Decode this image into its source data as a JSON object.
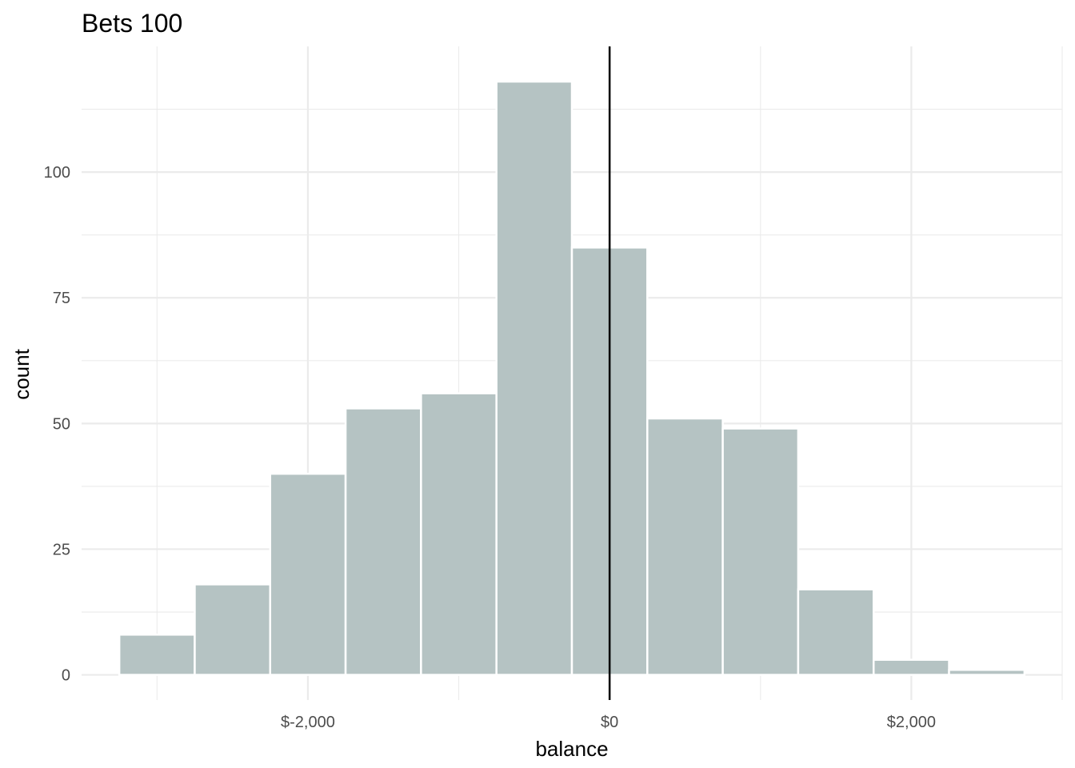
{
  "chart_data": {
    "type": "bar",
    "title": "Bets 100",
    "xlabel": "balance",
    "ylabel": "count",
    "bin_width": 500,
    "bins": [
      {
        "x_start": -3250,
        "x_end": -2750,
        "count": 8
      },
      {
        "x_start": -2750,
        "x_end": -2250,
        "count": 18
      },
      {
        "x_start": -2250,
        "x_end": -1750,
        "count": 40
      },
      {
        "x_start": -1750,
        "x_end": -1250,
        "count": 53
      },
      {
        "x_start": -1250,
        "x_end": -750,
        "count": 56
      },
      {
        "x_start": -750,
        "x_end": -250,
        "count": 118
      },
      {
        "x_start": -250,
        "x_end": 250,
        "count": 85
      },
      {
        "x_start": 250,
        "x_end": 750,
        "count": 51
      },
      {
        "x_start": 750,
        "x_end": 1250,
        "count": 49
      },
      {
        "x_start": 1250,
        "x_end": 1750,
        "count": 17
      },
      {
        "x_start": 1750,
        "x_end": 2250,
        "count": 3
      },
      {
        "x_start": 2250,
        "x_end": 2750,
        "count": 1
      }
    ],
    "reference_line": {
      "x": 0,
      "color": "#000000"
    },
    "x_ticks": [
      {
        "value": -2000,
        "label": "$-2,000"
      },
      {
        "value": 0,
        "label": "$0"
      },
      {
        "value": 2000,
        "label": "$2,000"
      }
    ],
    "y_ticks": [
      {
        "value": 0,
        "label": "0"
      },
      {
        "value": 25,
        "label": "25"
      },
      {
        "value": 50,
        "label": "50"
      },
      {
        "value": 75,
        "label": "75"
      },
      {
        "value": 100,
        "label": "100"
      }
    ],
    "xlim": [
      -3500,
      3000
    ],
    "ylim": [
      -5,
      125
    ],
    "grid": true,
    "legend": "none",
    "colors": {
      "fill": "#b5c3c3",
      "outline": "#ffffff",
      "grid": "#ebebeb"
    }
  }
}
